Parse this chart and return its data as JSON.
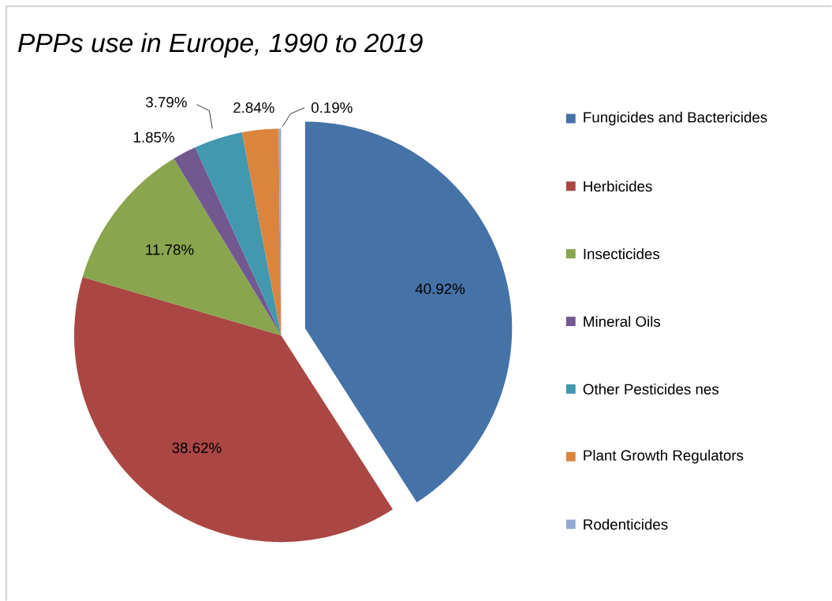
{
  "chart_data": {
    "type": "pie",
    "title": "PPPs use in Europe, 1990 to 2019",
    "categories": [
      "Fungicides and Bactericides",
      "Herbicides",
      "Insecticides",
      "Mineral Oils",
      "Other Pesticides nes",
      "Plant Growth Regulators",
      "Rodenticides"
    ],
    "values": [
      40.92,
      38.62,
      11.78,
      1.85,
      3.79,
      2.84,
      0.19
    ],
    "value_labels": [
      "40.92%",
      "38.62%",
      "11.78%",
      "1.85%",
      "3.79%",
      "2.84%",
      "0.19%"
    ],
    "colors": [
      "#4572a7",
      "#aa4643",
      "#89a54e",
      "#71588f",
      "#4198af",
      "#db843d",
      "#93a9cf"
    ],
    "legend": "right"
  }
}
